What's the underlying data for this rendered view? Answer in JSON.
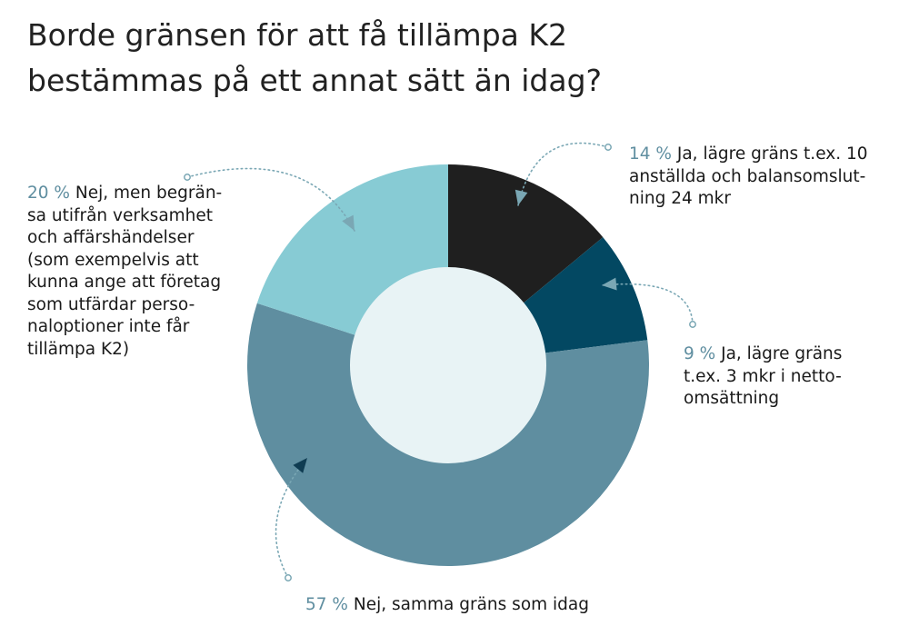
{
  "title_lines": [
    "Borde gränsen för att få tillämpa K2",
    "bestämmas på ett annat sätt än idag?"
  ],
  "colors": {
    "slice_1": "#1f1f1f",
    "slice_2": "#034862",
    "slice_3": "#5f8ea0",
    "slice_4": "#87cbd4",
    "hole": "#e8f3f5",
    "percent_text": "#5f8ea0",
    "connector": "#7aa7b4"
  },
  "chart_data": {
    "type": "pie",
    "variant": "donut",
    "title": "Borde gränsen för att få tillämpa K2 bestämmas på ett annat sätt än idag?",
    "slices": [
      {
        "label": "Ja, lägre gräns t.ex. 10 anställda och balansomslutning 24 mkr",
        "value": 14,
        "percent_text": "14 %",
        "label_lines": [
          "Ja, lägre gräns t.ex. 10",
          "anställda och balansomslut-",
          "ning 24 mkr"
        ]
      },
      {
        "label": "Ja, lägre gräns t.ex. 3 mkr i nettoomsättning",
        "value": 9,
        "percent_text": "9 %",
        "label_lines": [
          "Ja, lägre gräns",
          "t.ex. 3 mkr i netto-",
          "omsättning"
        ]
      },
      {
        "label": "Nej, samma gräns som idag",
        "value": 57,
        "percent_text": "57 %",
        "label_lines": [
          "Nej, samma gräns som idag"
        ]
      },
      {
        "label": "Nej, men begränsa utifrån verksamhet och affärshändelser (som exempelvis att kunna ange att företag som utfärdar personaloptioner inte får tillämpa K2)",
        "value": 20,
        "percent_text": "20 %",
        "label_lines": [
          "Nej, men begrän-",
          "sa utifrån verksamhet",
          "och affärshändelser",
          "(som exempelvis att",
          "kunna ange att företag",
          "som utfärdar perso-",
          "naloptioner inte får",
          "tillämpa K2)"
        ]
      }
    ]
  }
}
